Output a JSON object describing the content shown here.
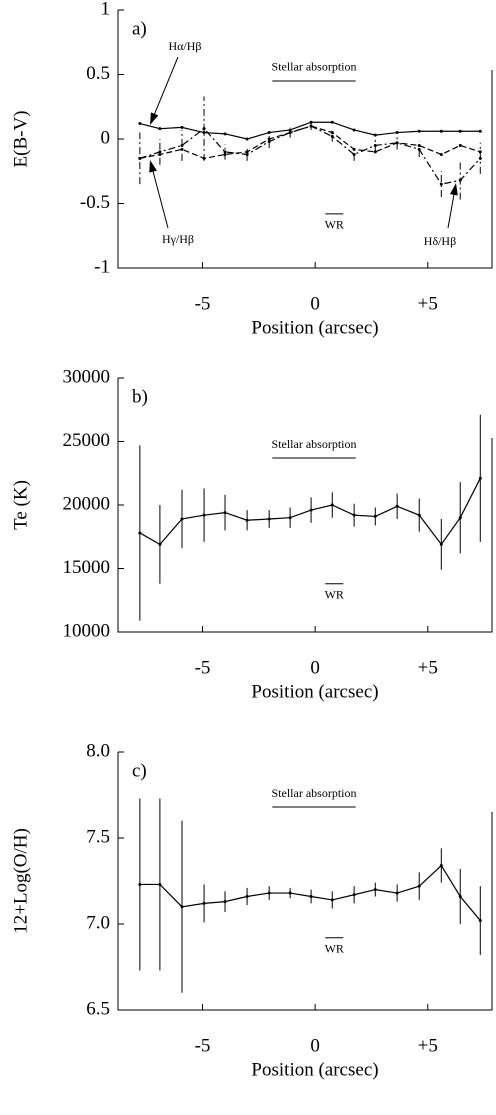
{
  "chart_data": [
    {
      "type": "line",
      "panel_label": "a)",
      "ylabel": "E(B-V)",
      "xlabel": "Position (arcsec)",
      "xlim": [
        -8.75,
        7.85
      ],
      "xticks": [
        -5,
        0,
        {
          "value": 5,
          "label": "+5"
        }
      ],
      "ylim": [
        -1,
        1
      ],
      "yticks": [
        -1,
        -0.5,
        0,
        0.5,
        1
      ],
      "x": [
        -7.78,
        -6.89,
        -5.91,
        -4.93,
        -4.0,
        -3.02,
        -2.04,
        -1.11,
        -0.18,
        0.76,
        1.73,
        2.67,
        3.64,
        4.62,
        5.6,
        6.44,
        7.33
      ],
      "series": [
        {
          "name": "Hα/Hβ",
          "color": "#000000",
          "dash": "solid",
          "values": [
            0.12,
            0.08,
            0.09,
            0.05,
            0.04,
            0.0,
            0.05,
            0.07,
            0.13,
            0.13,
            0.07,
            0.03,
            0.05,
            0.06,
            0.06,
            0.06,
            0.06
          ]
        },
        {
          "name": "Hγ/Hβ",
          "color": "#000000",
          "dash": "dashdot",
          "values": [
            -0.15,
            -0.1,
            -0.05,
            0.08,
            -0.1,
            -0.12,
            -0.02,
            0.05,
            0.1,
            0.02,
            -0.12,
            -0.05,
            -0.03,
            -0.08,
            -0.35,
            -0.32,
            -0.15
          ],
          "errors": [
            0.2,
            0.1,
            0.12,
            0.25,
            0.06,
            0.05,
            0.05,
            0.04,
            0.03,
            0.04,
            0.05,
            0.05,
            0.05,
            0.06,
            0.1,
            0.15,
            0.12
          ]
        },
        {
          "name": "Hδ/Hβ",
          "color": "#000000",
          "dash": "dashed",
          "values": [
            -0.15,
            -0.12,
            -0.08,
            -0.15,
            -0.12,
            -0.1,
            0.0,
            0.05,
            0.1,
            0.05,
            -0.08,
            -0.1,
            -0.03,
            -0.05,
            -0.12,
            -0.05,
            -0.1
          ]
        }
      ],
      "spans": [
        {
          "label": "Stellar absorption",
          "x": [
            -1.9,
            1.8
          ],
          "y": 0.45
        },
        {
          "label": "WR",
          "x": [
            0.45,
            1.25
          ],
          "y": -0.58
        }
      ]
    },
    {
      "type": "line",
      "panel_label": "b)",
      "ylabel": "Te (K)",
      "xlabel": "Position (arcsec)",
      "xlim": [
        -8.75,
        7.85
      ],
      "xticks": [
        -5,
        0,
        {
          "value": 5,
          "label": "+5"
        }
      ],
      "ylim": [
        10000,
        30000
      ],
      "yticks": [
        10000,
        15000,
        20000,
        25000,
        30000
      ],
      "x": [
        -7.78,
        -6.89,
        -5.91,
        -4.93,
        -4.0,
        -3.02,
        -2.04,
        -1.11,
        -0.18,
        0.76,
        1.73,
        2.67,
        3.64,
        4.62,
        5.6,
        6.44,
        7.33
      ],
      "series": [
        {
          "color": "#000000",
          "dash": "solid",
          "values": [
            17800,
            16900,
            18900,
            19200,
            19400,
            18800,
            18900,
            19000,
            19600,
            20000,
            19200,
            19100,
            19900,
            19200,
            16900,
            19000,
            22100
          ],
          "errors": [
            6900,
            3100,
            2300,
            2100,
            1400,
            800,
            700,
            800,
            1000,
            1000,
            900,
            700,
            1000,
            1300,
            2000,
            2800,
            5000
          ]
        }
      ],
      "spans": [
        {
          "label": "Stellar absorption",
          "x": [
            -1.9,
            1.8
          ],
          "y": 23700
        },
        {
          "label": "WR",
          "x": [
            0.45,
            1.25
          ],
          "y": 13800
        }
      ]
    },
    {
      "type": "line",
      "panel_label": "c)",
      "ylabel": "12+Log(O/H)",
      "xlabel": "Position (arcsec)",
      "xlim": [
        -8.75,
        7.85
      ],
      "xticks": [
        -5,
        0,
        {
          "value": 5,
          "label": "+5"
        }
      ],
      "ylim": [
        6.5,
        8.0
      ],
      "yticks": [
        6.5,
        {
          "value": 7,
          "label": "7.0"
        },
        7.5,
        {
          "value": 8,
          "label": "8.0"
        }
      ],
      "x": [
        -7.78,
        -6.89,
        -5.91,
        -4.93,
        -4.0,
        -3.02,
        -2.04,
        -1.11,
        -0.18,
        0.76,
        1.73,
        2.67,
        3.64,
        4.62,
        5.6,
        6.44,
        7.33
      ],
      "series": [
        {
          "color": "#000000",
          "dash": "solid",
          "values": [
            7.23,
            7.23,
            7.1,
            7.12,
            7.13,
            7.16,
            7.18,
            7.18,
            7.16,
            7.14,
            7.17,
            7.2,
            7.18,
            7.22,
            7.34,
            7.16,
            7.02
          ],
          "errors": [
            0.5,
            0.5,
            0.5,
            0.11,
            0.06,
            0.05,
            0.04,
            0.03,
            0.04,
            0.05,
            0.05,
            0.04,
            0.05,
            0.08,
            0.1,
            0.16,
            0.2
          ]
        }
      ],
      "spans": [
        {
          "label": "Stellar absorption",
          "x": [
            -1.9,
            1.8
          ],
          "y": 7.68
        },
        {
          "label": "WR",
          "x": [
            0.45,
            1.25
          ],
          "y": 6.92
        }
      ]
    }
  ]
}
